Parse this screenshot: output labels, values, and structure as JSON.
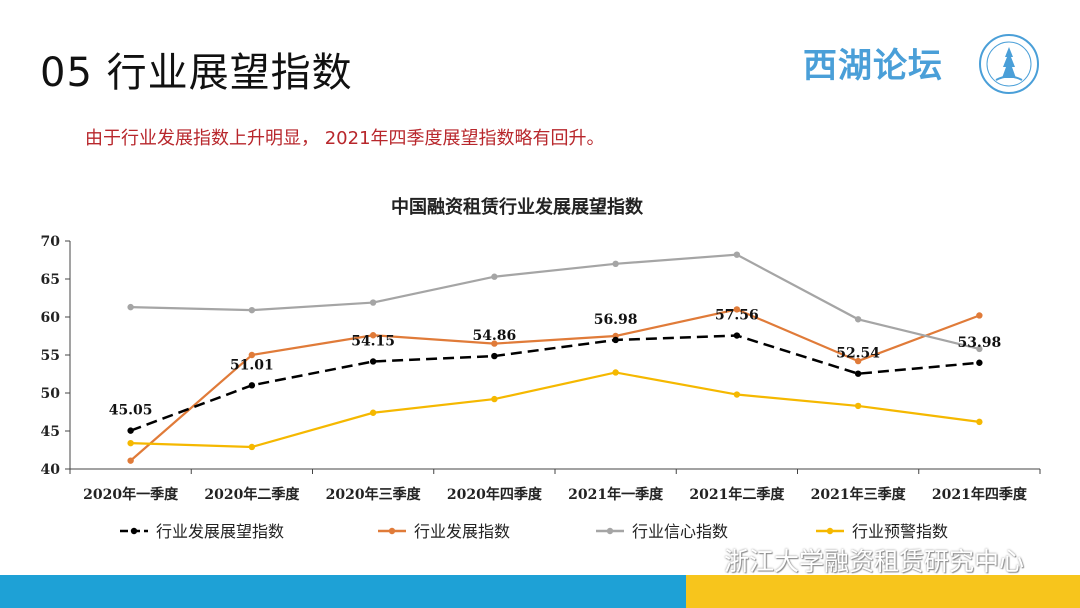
{
  "slide": {
    "title": "05 行业展望指数",
    "brand": "西湖论坛",
    "subtitle": "由于行业发展指数上升明显， 2021年四季度展望指数略有回升。"
  },
  "watermark": {
    "text": "浙江大学融资租赁研究中心"
  },
  "colors": {
    "subtitle": "#b8272c",
    "brand": "#4a9fd8",
    "footer_blue": "#1ea1d6",
    "footer_yellow": "#f7c51c"
  },
  "chart_data": {
    "type": "line",
    "title": "中国融资租赁行业发展展望指数",
    "xlabel": "",
    "ylabel": "",
    "ylim": [
      40,
      70
    ],
    "yticks": [
      40,
      45,
      50,
      55,
      60,
      65,
      70
    ],
    "legend_position": "bottom",
    "grid": false,
    "categories": [
      "2020年一季度",
      "2020年二季度",
      "2020年三季度",
      "2020年四季度",
      "2021年一季度",
      "2021年二季度",
      "2021年三季度",
      "2021年四季度"
    ],
    "series": [
      {
        "name": "行业发展展望指数",
        "color": "#000000",
        "dashed": true,
        "labeled": true,
        "values": [
          45.05,
          51.01,
          54.15,
          54.86,
          56.98,
          57.56,
          52.54,
          53.98
        ]
      },
      {
        "name": "行业发展指数",
        "color": "#e07b39",
        "dashed": false,
        "labeled": false,
        "values": [
          41.1,
          55.0,
          57.6,
          56.5,
          57.5,
          61.0,
          54.2,
          60.2
        ]
      },
      {
        "name": "行业信心指数",
        "color": "#a5a5a5",
        "dashed": false,
        "labeled": false,
        "values": [
          61.3,
          60.9,
          61.9,
          65.3,
          67.0,
          68.2,
          59.7,
          55.8
        ]
      },
      {
        "name": "行业预警指数",
        "color": "#f5b800",
        "dashed": false,
        "labeled": false,
        "values": [
          43.4,
          42.9,
          47.4,
          49.2,
          52.7,
          49.8,
          48.3,
          46.2
        ]
      }
    ]
  }
}
